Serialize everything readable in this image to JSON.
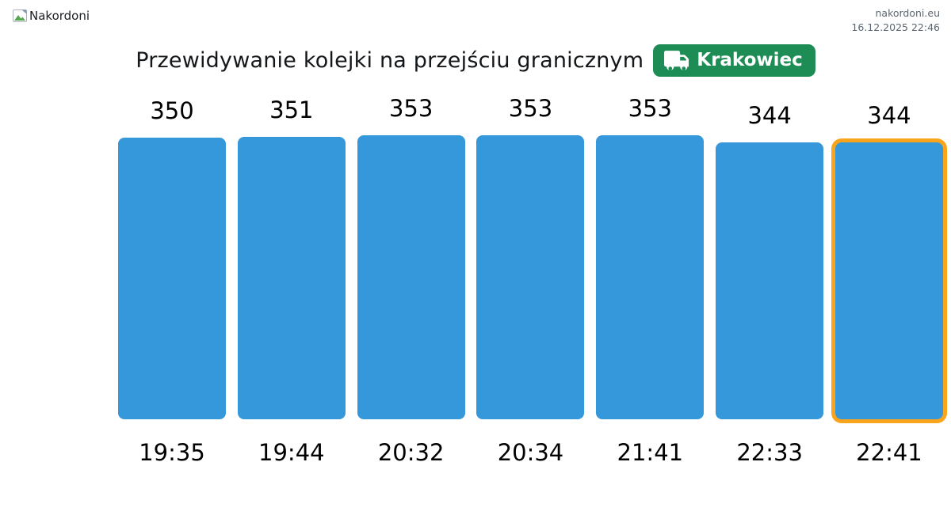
{
  "header": {
    "logo_alt": "Nakordoni",
    "site_url": "nakordoni.eu",
    "timestamp": "16.12.2025 22:46"
  },
  "badge": {
    "label": "Krakowiec",
    "color": "#1e8c55",
    "icon": "truck-icon"
  },
  "chart_data": {
    "type": "bar",
    "title": "Przewidywanie kolejki na przejściu granicznym",
    "categories": [
      "19:35",
      "19:44",
      "20:32",
      "20:34",
      "21:41",
      "22:33",
      "22:41"
    ],
    "values": [
      350,
      351,
      353,
      353,
      353,
      344,
      344
    ],
    "value_labels_shown": true,
    "highlighted_index": 6,
    "bar_color": "#3498db",
    "highlight_border_color": "#faa41b",
    "xlabel": "",
    "ylabel": "",
    "ylim": [
      0,
      353
    ],
    "grid": false,
    "legend": false
  }
}
